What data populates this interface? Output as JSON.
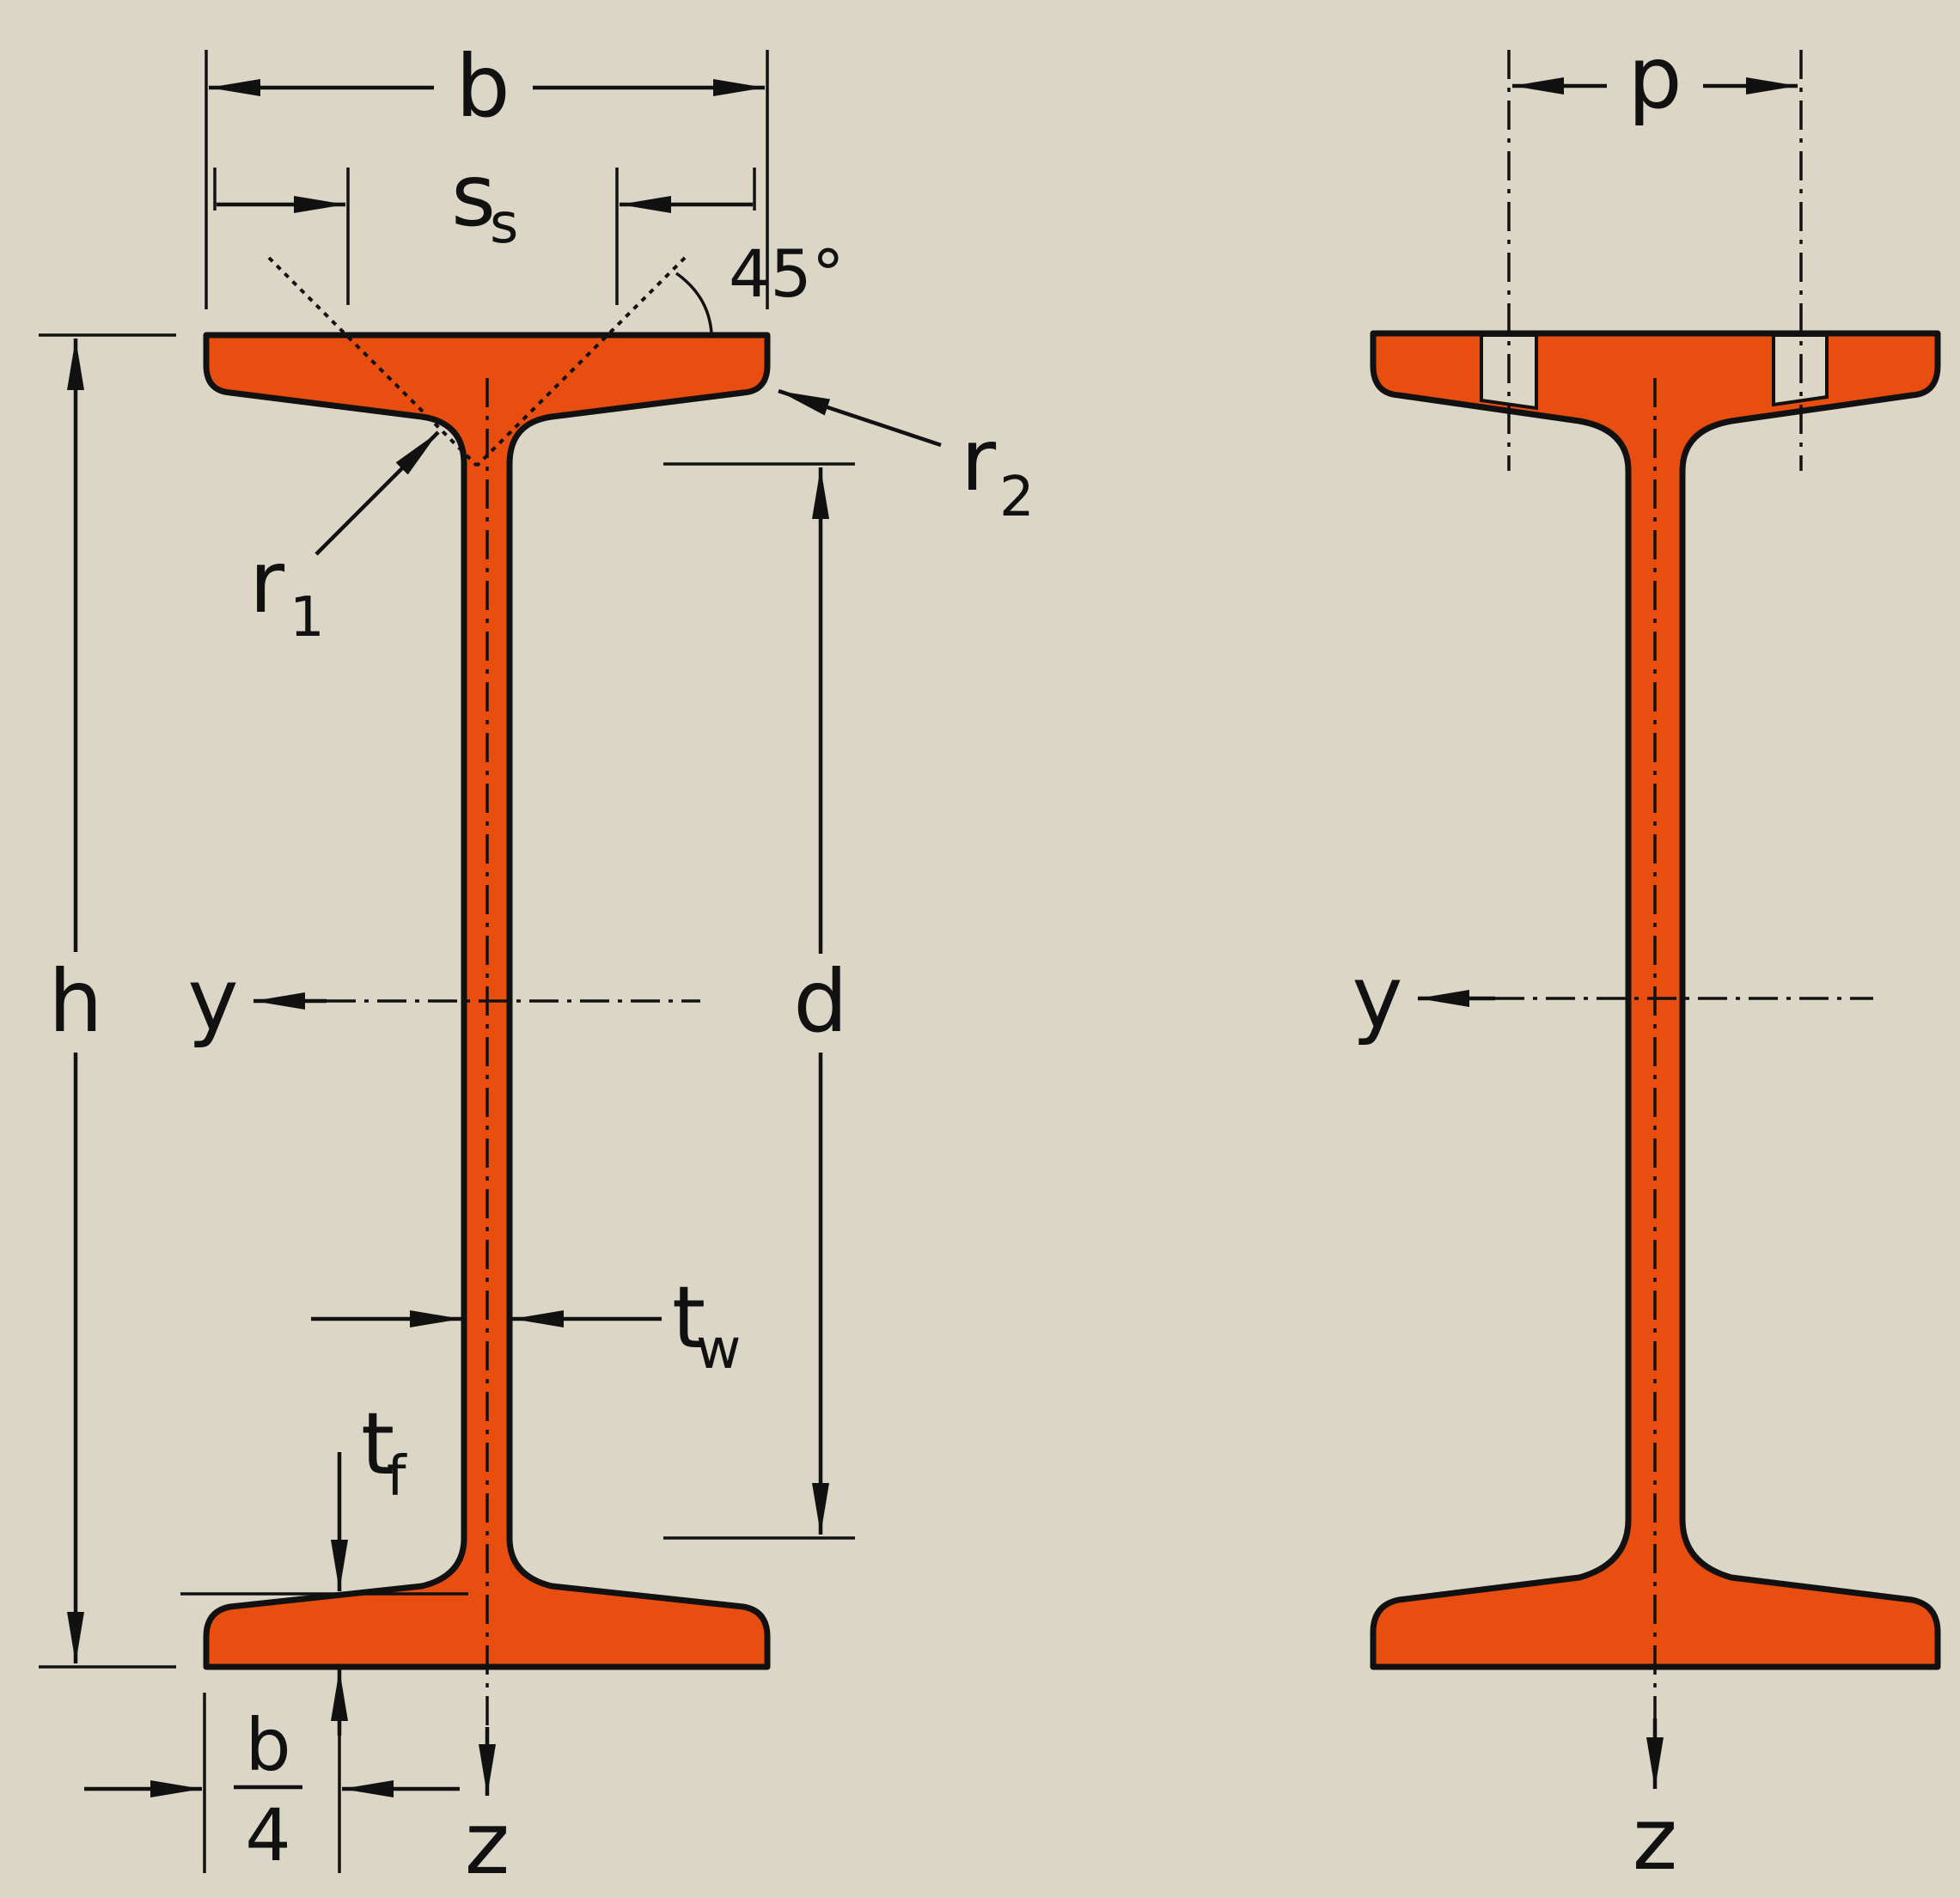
{
  "colors": {
    "background": "#dbd6c6",
    "section": "#e84e0f",
    "line": "#111111"
  },
  "labels": {
    "b": "b",
    "ss_main": "s",
    "ss_sub": "s",
    "angle": "45°",
    "r1_main": "r",
    "r1_sub": "1",
    "r2_main": "r",
    "r2_sub": "2",
    "h": "h",
    "d": "d",
    "y_left": "y",
    "tw_main": "t",
    "tw_sub": "w",
    "tf_main": "t",
    "tf_sub": "f",
    "b4_num": "b",
    "b4_den": "4",
    "z_left": "z",
    "p": "p",
    "y_right": "y",
    "z_right": "z"
  }
}
